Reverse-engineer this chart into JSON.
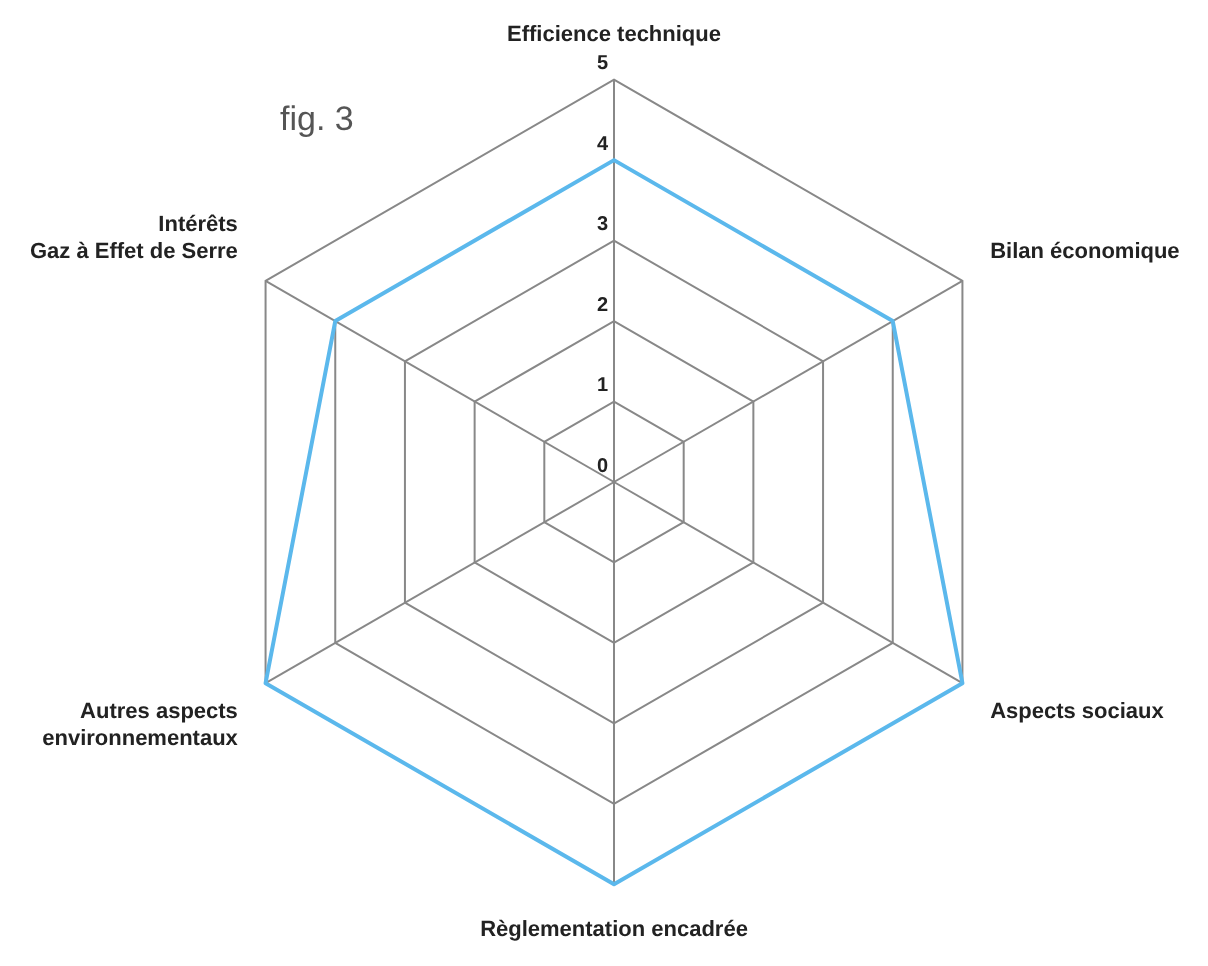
{
  "chart_data": {
    "type": "radar",
    "categories": [
      "Efficience technique",
      "Bilan économique",
      "Aspects sociaux",
      "Règlementation encadrée",
      "Autres aspects\nenvironnementaux",
      "Intérêts\nGaz à Effet de Serre"
    ],
    "series": [
      {
        "color": "#5bb8ec",
        "values": [
          4,
          4,
          5,
          5,
          5,
          4
        ]
      }
    ],
    "ylim": [
      0,
      5
    ],
    "yticks": [
      0,
      1,
      2,
      3,
      4,
      5
    ],
    "grid": true,
    "legend": false,
    "marker": "none",
    "annotations": [
      "fig. 3"
    ]
  }
}
